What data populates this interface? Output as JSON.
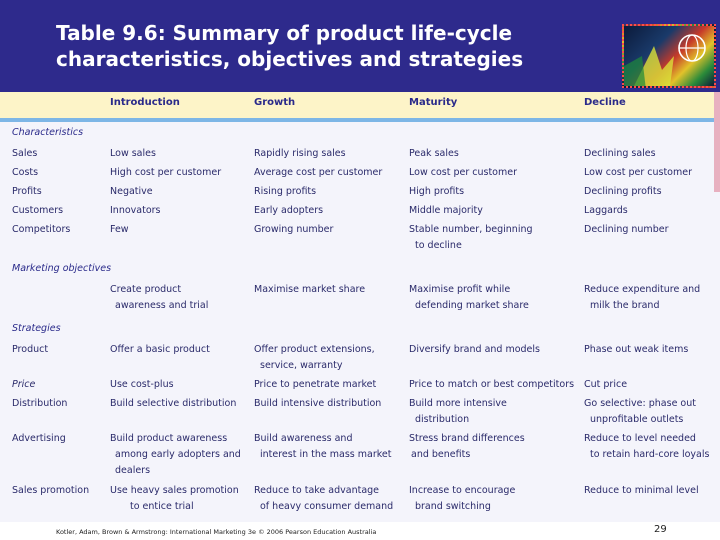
{
  "slide": {
    "title_line1": "Table 9.6: Summary of product life-cycle",
    "title_line2": "characteristics, objectives and strategies"
  },
  "columns": [
    "Introduction",
    "Growth",
    "Maturity",
    "Decline"
  ],
  "sections": {
    "characteristics": "Characteristics",
    "marketing_objectives": "Marketing objectives",
    "strategies": "Strategies"
  },
  "rows": {
    "sales": {
      "label": "Sales",
      "introduction": "Low sales",
      "growth": "Rapidly rising sales",
      "maturity": "Peak sales",
      "decline": "Declining sales"
    },
    "costs": {
      "label": "Costs",
      "introduction": "High cost per customer",
      "growth": "Average cost per customer",
      "maturity": "Low cost per customer",
      "decline": "Low cost per customer"
    },
    "profits": {
      "label": "Profits",
      "introduction": "Negative",
      "growth": "Rising profits",
      "maturity": "High profits",
      "decline": "Declining profits"
    },
    "customers": {
      "label": "Customers",
      "introduction": "Innovators",
      "growth": "Early adopters",
      "maturity": "Middle majority",
      "decline": "Laggards"
    },
    "competitors": {
      "label": "Competitors",
      "introduction": "Few",
      "growth": "Growing number",
      "maturity_1": "Stable number, beginning",
      "maturity_2": "to decline",
      "decline": "Declining number"
    },
    "objectives": {
      "introduction_1": "Create product",
      "introduction_2": "awareness and trial",
      "growth": "Maximise market share",
      "maturity_1": "Maximise profit while",
      "maturity_2": "defending market share",
      "decline_1": "Reduce  expenditure and",
      "decline_2": "milk the brand"
    },
    "product": {
      "label": "Product",
      "introduction": "Offer a basic product",
      "growth_1": "Offer product extensions,",
      "growth_2": "service, warranty",
      "maturity": "Diversify brand and models",
      "decline": "Phase out weak items"
    },
    "price": {
      "label": "Price",
      "introduction": "Use cost-plus",
      "growth": "Price to penetrate market",
      "maturity": "Price to match or best competitors",
      "decline": "Cut price"
    },
    "distribution": {
      "label": "Distribution",
      "introduction": "Build selective distribution",
      "growth": "Build intensive distribution",
      "maturity_1": "Build more intensive",
      "maturity_2": "distribution",
      "decline_1": "Go selective: phase out",
      "decline_2": "unprofitable outlets"
    },
    "advertising": {
      "label": "Advertising",
      "introduction_1": "Build product awareness",
      "introduction_2": "among early adopters and",
      "introduction_3": "dealers",
      "growth_1": "Build awareness and",
      "growth_2": "interest in the mass market",
      "maturity_1": "Stress brand  differences",
      "maturity_2": "and  benefits",
      "decline_1": "Reduce to level needed",
      "decline_2": "to retain hard-core loyals"
    },
    "sales_promotion": {
      "label": "Sales promotion",
      "introduction_1": "Use heavy sales promotion",
      "introduction_2": "to entice trial",
      "growth_1": "Reduce to take advantage",
      "growth_2": "of heavy consumer demand",
      "maturity_1": "Increase to encourage",
      "maturity_2": "brand switching",
      "decline": "Reduce to minimal level"
    }
  },
  "footer": {
    "credit": "Kotler, Adam, Brown & Armstrong: International Marketing 3e © 2006 Pearson Education Australia",
    "page_number": "29"
  }
}
